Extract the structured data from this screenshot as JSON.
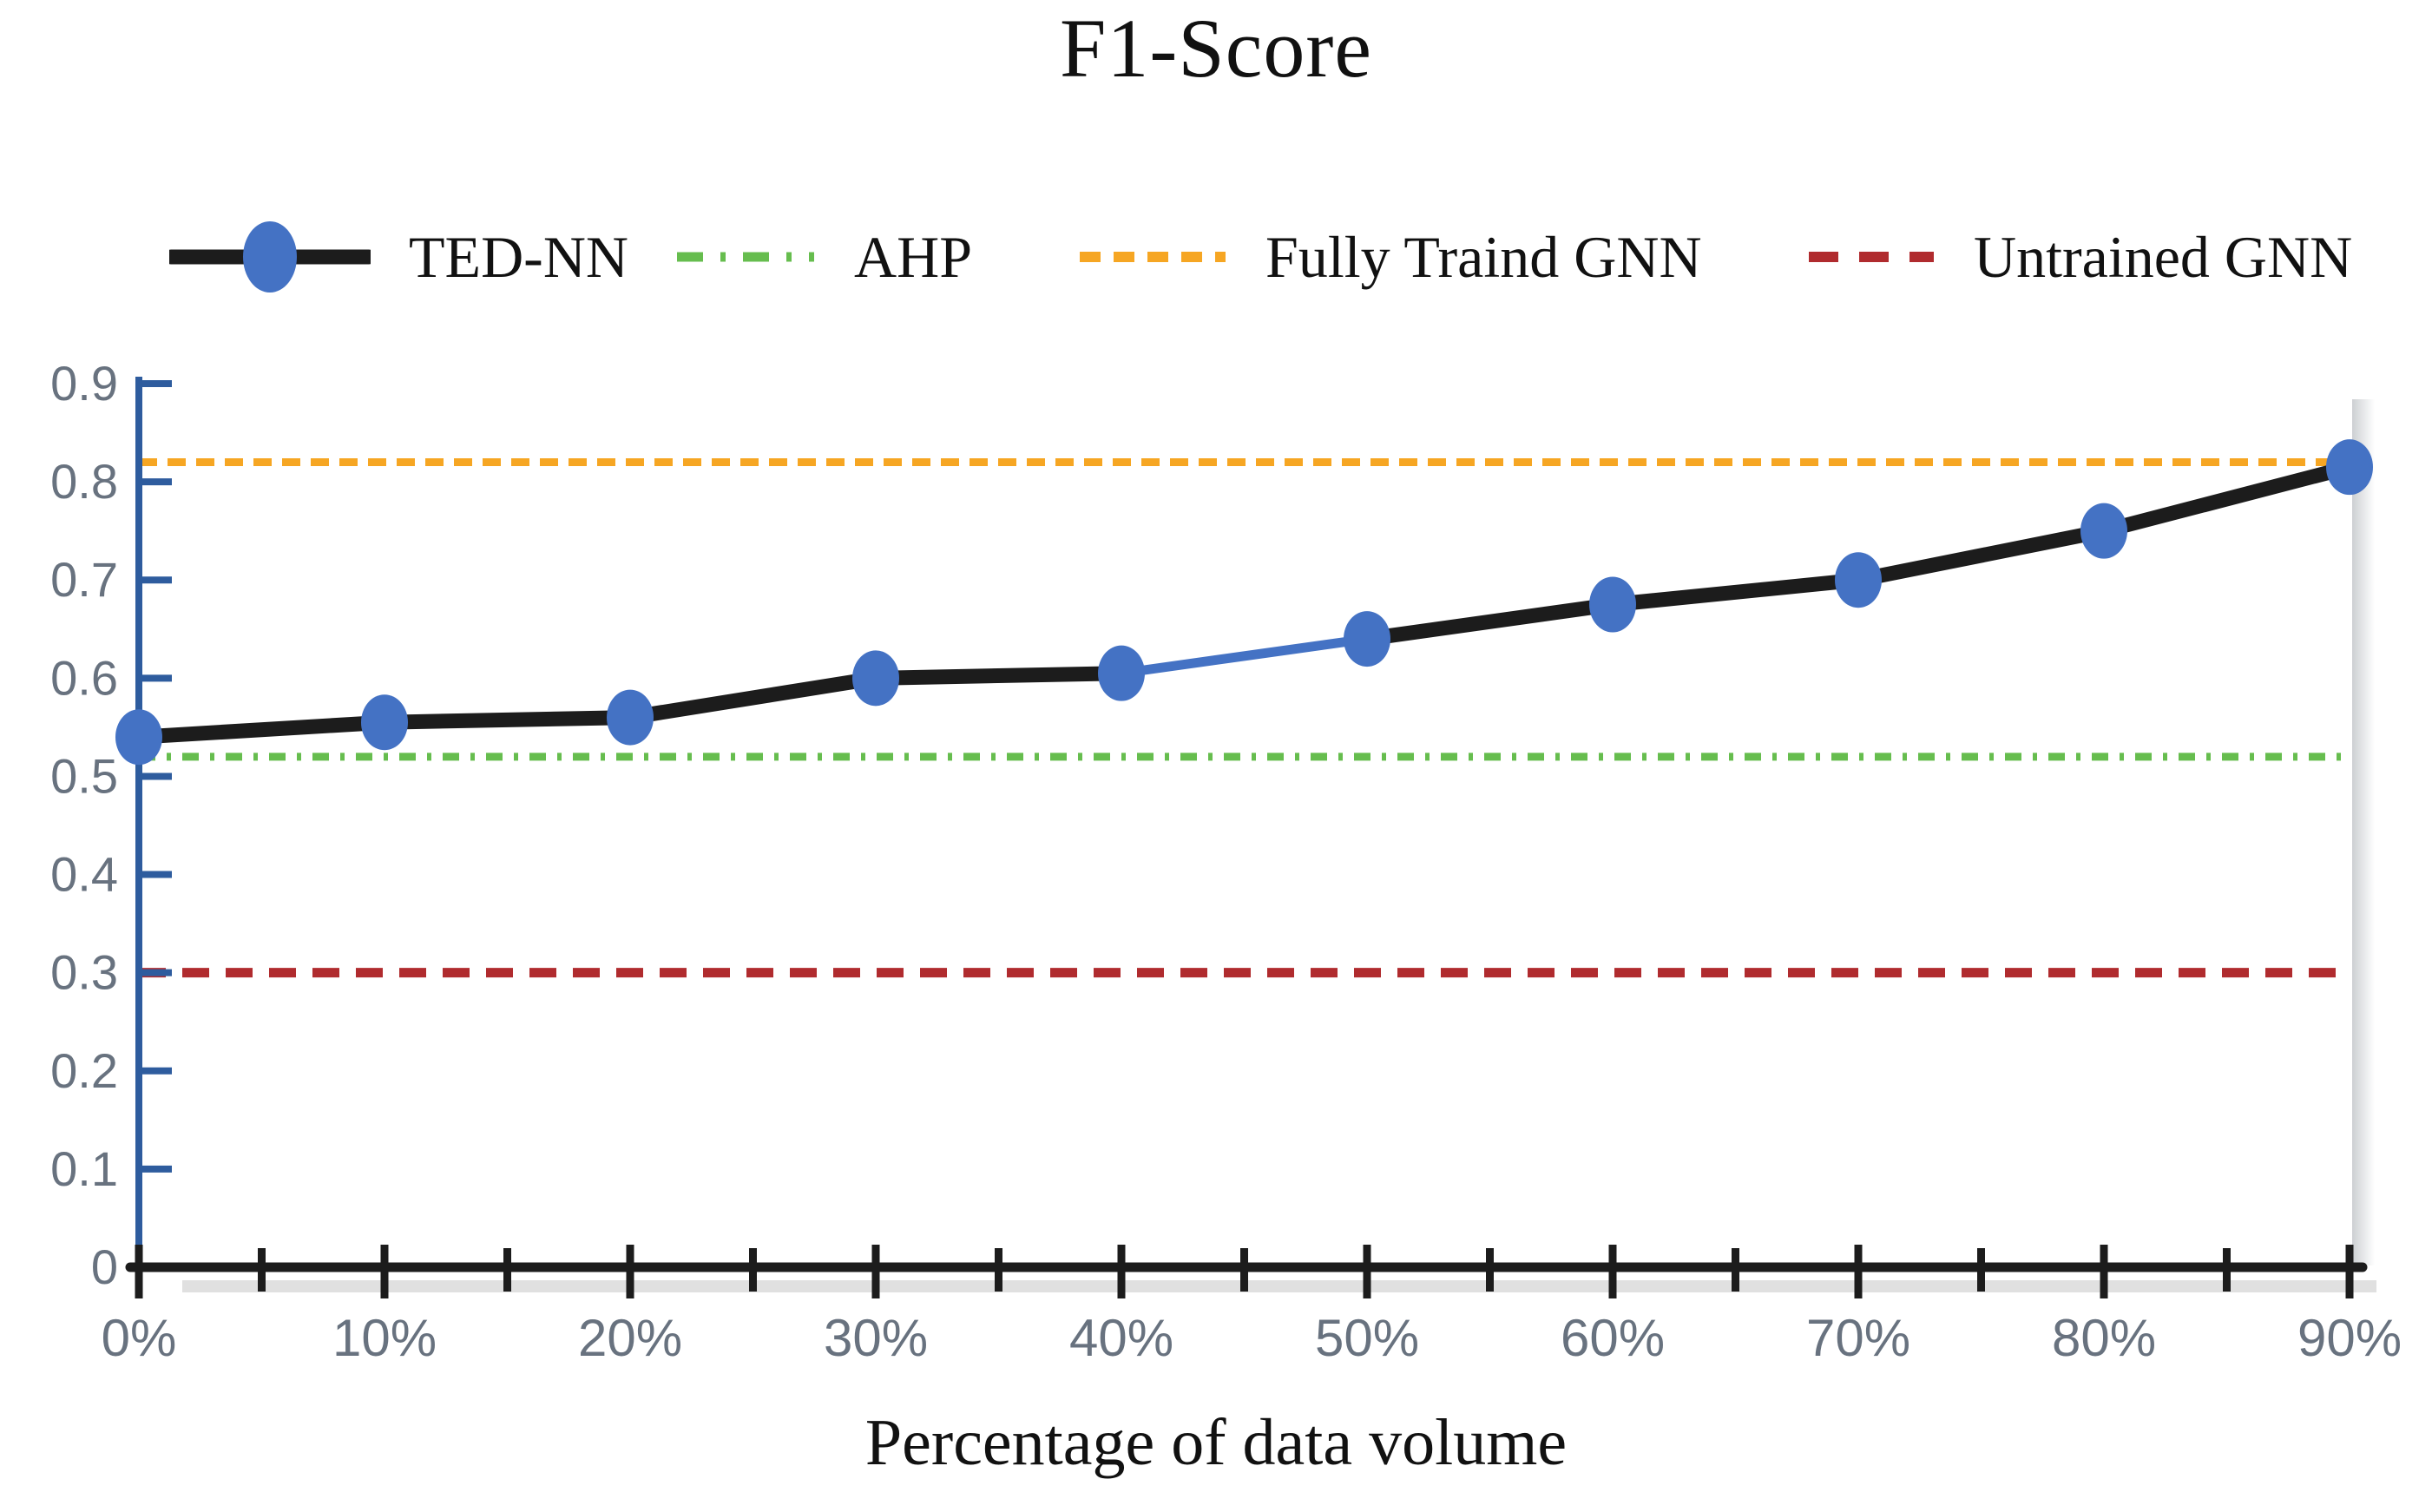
{
  "figure": {
    "title": "F1-Score",
    "x_axis_title": "Percentage of data volume"
  },
  "legend": {
    "items": [
      {
        "label": "TED-NN",
        "style": "solid-line-with-marker",
        "line_color": "#1c1c1c",
        "marker_color": "#4472c4"
      },
      {
        "label": "AHP",
        "style": "dash-dot",
        "line_color": "#66bd4e"
      },
      {
        "label": "Fully Traind GNN",
        "style": "dashed",
        "line_color": "#f6a623"
      },
      {
        "label": "Untrained GNN",
        "style": "dashed",
        "line_color": "#b02b2e"
      }
    ]
  },
  "chart_data": {
    "type": "line",
    "title": "F1-Score",
    "xlabel": "Percentage of data volume",
    "ylabel": "",
    "x": [
      "0%",
      "10%",
      "20%",
      "30%",
      "40%",
      "50%",
      "60%",
      "70%",
      "80%",
      "90%"
    ],
    "y_ticks": [
      "0",
      "0.1",
      "0.2",
      "0.3",
      "0.4",
      "0.5",
      "0.6",
      "0.7",
      "0.8",
      "0.9"
    ],
    "ylim": [
      0,
      0.9
    ],
    "grid": false,
    "legend_position": "top",
    "series": [
      {
        "name": "TED-NN",
        "type": "line",
        "color": "#1c1c1c",
        "marker": "circle",
        "marker_color": "#4472c4",
        "values": [
          0.54,
          0.555,
          0.56,
          0.6,
          0.605,
          0.64,
          0.675,
          0.7,
          0.75,
          0.815
        ],
        "highlight_segment": {
          "from_index": 4,
          "to_index": 5,
          "color": "#4472c4"
        }
      },
      {
        "name": "AHP",
        "type": "hline",
        "value": 0.52,
        "color": "#66bd4e",
        "dash": "dash-dot"
      },
      {
        "name": "Fully Traind GNN",
        "type": "hline",
        "value": 0.82,
        "color": "#f6a623",
        "dash": "dashed"
      },
      {
        "name": "Untrained GNN",
        "type": "hline",
        "value": 0.3,
        "color": "#b02b2e",
        "dash": "dashed"
      }
    ],
    "axis_colors": {
      "y_axis": "#2e5c9e",
      "x_axis": "#1c1c1c",
      "tick_labels": "#68727f"
    }
  }
}
